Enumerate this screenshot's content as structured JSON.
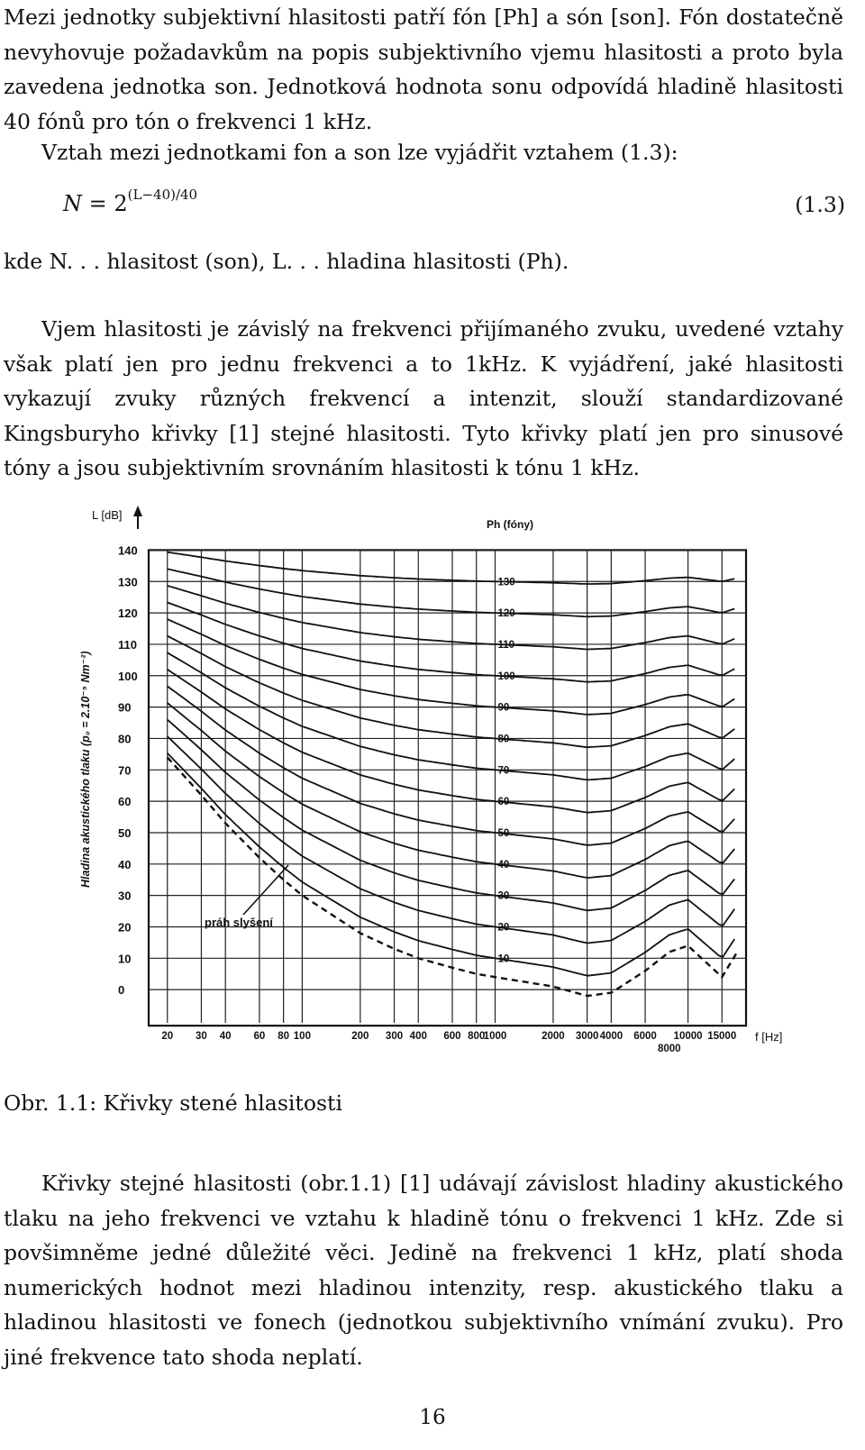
{
  "paragraphs": {
    "p1": "Mezi jednotky subjektivní hlasitosti patří fón [Ph] a són [son]. Fón dostatečně nevyhovuje požadavkům na popis subjektivního vjemu hlasitosti a proto byla zavedena jednotka son. Jednotková hodnota sonu odpovídá hladině hlasitosti 40 fónů pro tón o frekvenci 1 kHz.",
    "p2": "Vztah mezi jednotkami fon a son lze vyjádřit vztahem (1.3):",
    "p3": "kde N. . . hlasitost (son), L. . . hladina hlasitosti (Ph).",
    "p4": "Vjem hlasitosti je závislý na frekvenci přijímaného zvuku, uvedené vztahy však platí jen pro jednu frekvenci a to 1kHz. K vyjádření, jaké hlasitosti vykazují zvuky různých frekvencí a intenzit, slouží standardizované Kingsburyho křivky [1] stejné hlasitosti. Tyto křivky platí jen pro sinusové tóny a jsou subjektivním srovnáním hlasitosti k tónu 1 kHz.",
    "p5": "Křivky stejné hlasitosti (obr.1.1) [1] udávají závislost hladiny akustického tlaku na jeho frekvenci ve vztahu k hladině tónu o frekvenci 1 kHz. Zde si povšimněme jedné důležité věci. Jedině na frekvenci 1 kHz, platí shoda numerických hodnot mezi hladinou intenzity, resp. akustického tlaku a hladinou hlasitosti ve fonech (jednotkou subjektivního vnímání zvuku). Pro jiné frekvence tato shoda neplatí."
  },
  "equation": {
    "lhs": "N",
    "equals": " = 2",
    "exponent": "(L−40)/40",
    "number": "(1.3)"
  },
  "caption": "Obr. 1.1: Křivky stené hlasitosti",
  "page_number": "16",
  "chart_data": {
    "type": "line",
    "title": "",
    "ylabel_top": "L [dB]",
    "ylabel_side": "Hladina akustického tlaku (p₀ = 2.10⁻⁵ Nm⁻²)",
    "xlabel": "f [Hz]",
    "curve_label_title": "Ph (fóny)",
    "threshold_label": "práh slyšení",
    "y_ticks": [
      "0",
      "10",
      "20",
      "30",
      "40",
      "50",
      "60",
      "70",
      "80",
      "90",
      "100",
      "110",
      "120",
      "130",
      "140"
    ],
    "x_ticks": [
      "20",
      "30",
      "40",
      "60",
      "80",
      "100",
      "200",
      "300",
      "400",
      "600",
      "800",
      "1000",
      "2000",
      "3000",
      "4000",
      "6000",
      "10000",
      "15000"
    ],
    "x_tick_offset": "8000",
    "ylim": [
      -10,
      145
    ],
    "xlim": [
      16,
      20000
    ],
    "curve_labels": [
      "10",
      "20",
      "30",
      "40",
      "50",
      "60",
      "70",
      "80",
      "90",
      "100",
      "110",
      "120",
      "130"
    ],
    "series_phon": [
      10,
      20,
      30,
      40,
      50,
      60,
      70,
      80,
      90,
      100,
      110,
      120,
      130
    ],
    "threshold_points": [
      [
        20,
        74
      ],
      [
        30,
        62
      ],
      [
        40,
        53
      ],
      [
        60,
        42
      ],
      [
        80,
        35
      ],
      [
        100,
        30
      ],
      [
        200,
        18
      ],
      [
        300,
        13
      ],
      [
        400,
        10
      ],
      [
        600,
        7
      ],
      [
        800,
        5
      ],
      [
        1000,
        4
      ],
      [
        2000,
        1
      ],
      [
        3000,
        -2
      ],
      [
        4000,
        -1
      ],
      [
        6000,
        6
      ],
      [
        8000,
        12
      ],
      [
        10000,
        14
      ],
      [
        15000,
        4
      ],
      [
        18000,
        12
      ]
    ]
  }
}
